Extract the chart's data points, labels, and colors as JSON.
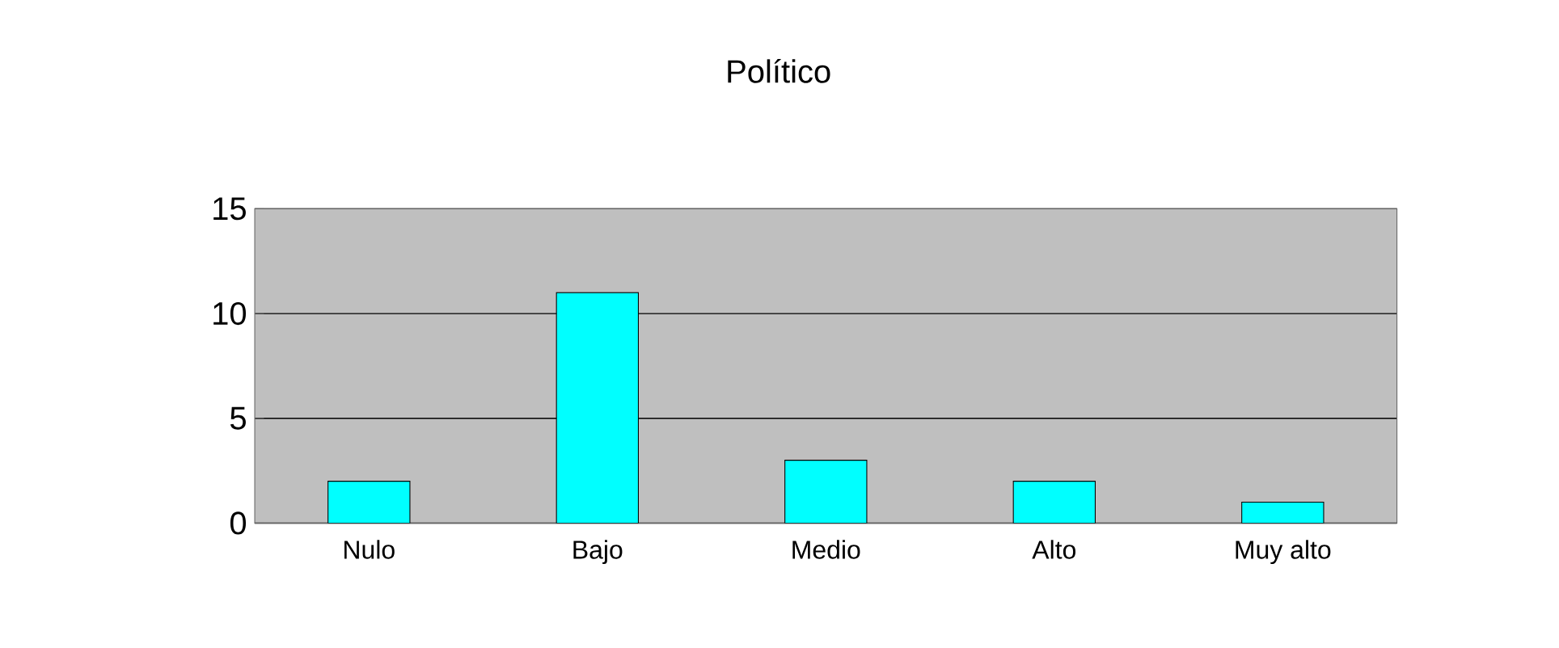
{
  "chart_data": {
    "type": "bar",
    "title": "Político",
    "categories": [
      "Nulo",
      "Bajo",
      "Medio",
      "Alto",
      "Muy alto"
    ],
    "values": [
      2,
      11,
      3,
      2,
      1
    ],
    "color": "#00ffff",
    "ylim": [
      0,
      15
    ],
    "yticks": [
      0,
      5,
      10,
      15
    ],
    "grid": "y"
  }
}
